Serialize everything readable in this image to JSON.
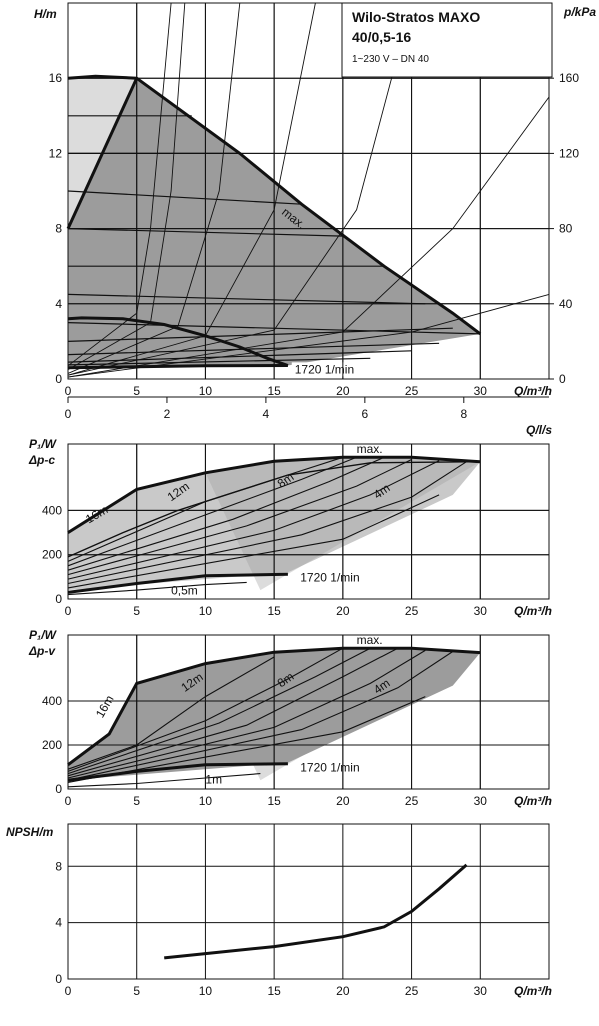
{
  "title": {
    "line1": "Wilo-Stratos MAXO",
    "line2": "40/0,5-16",
    "line3": "1~230 V – DN 40"
  },
  "colors": {
    "line": "#111111",
    "shade_dark": "#9c9c9c",
    "shade_light": "#dcdcdc",
    "grid": "#111111"
  },
  "chart_data": [
    {
      "id": "hq",
      "type": "line",
      "ylabel": "H/m",
      "y2label": "p/kPa",
      "xlabel": "Q/m³/h",
      "x2label": "Q/l/s",
      "xlim": [
        0,
        35
      ],
      "ylim": [
        0,
        20
      ],
      "xticks": [
        0,
        5,
        10,
        15,
        20,
        25,
        30
      ],
      "yticks": [
        0,
        4,
        8,
        12,
        16
      ],
      "y2ticks": [
        0,
        40,
        80,
        120,
        160
      ],
      "x2ticks": [
        0,
        2,
        4,
        6,
        8
      ],
      "max_label": "max.",
      "min_label": "1720 1/min",
      "series": [
        {
          "id": "max",
          "x": [
            0,
            2,
            5,
            12.5,
            17,
            23,
            28,
            30
          ],
          "y": [
            16,
            16.1,
            16,
            12,
            9.3,
            6,
            3.5,
            2.4
          ]
        },
        {
          "id": "dp-c-left",
          "x": [
            0,
            5
          ],
          "y": [
            8,
            16
          ]
        },
        {
          "id": "min",
          "x": [
            0,
            5,
            10,
            16
          ],
          "y": [
            0.6,
            0.65,
            0.7,
            0.72
          ]
        },
        {
          "id": "low-ceiling",
          "x": [
            0,
            1,
            4,
            7,
            10,
            12.5,
            14.5,
            16
          ],
          "y": [
            3.2,
            3.25,
            3.2,
            2.9,
            2.3,
            1.7,
            1.1,
            0.72
          ]
        }
      ],
      "speed_lines": [
        {
          "x": [
            0,
            9
          ],
          "y": [
            14,
            14
          ]
        },
        {
          "x": [
            0,
            12.5
          ],
          "y": [
            12,
            12
          ]
        },
        {
          "x": [
            0,
            17
          ],
          "y": [
            10,
            9.3
          ]
        },
        {
          "x": [
            0,
            20
          ],
          "y": [
            8,
            7.6
          ]
        },
        {
          "x": [
            0,
            23
          ],
          "y": [
            6,
            6
          ]
        },
        {
          "x": [
            0,
            26
          ],
          "y": [
            4.5,
            4
          ]
        },
        {
          "x": [
            0,
            30
          ],
          "y": [
            3,
            2.4
          ]
        },
        {
          "x": [
            0,
            28
          ],
          "y": [
            2,
            2.7
          ]
        },
        {
          "x": [
            0,
            27
          ],
          "y": [
            1.3,
            1.9
          ]
        },
        {
          "x": [
            0,
            25
          ],
          "y": [
            0.9,
            1.5
          ]
        },
        {
          "x": [
            0,
            22
          ],
          "y": [
            0.75,
            1.1
          ]
        }
      ],
      "fan_lines": [
        {
          "x": [
            0,
            5,
            6,
            7.5
          ],
          "y": [
            0.7,
            3.5,
            8,
            20
          ]
        },
        {
          "x": [
            0,
            6,
            7.5,
            8.5
          ],
          "y": [
            0.5,
            3,
            10,
            20
          ]
        },
        {
          "x": [
            0,
            8,
            11,
            12.5
          ],
          "y": [
            0.3,
            2.8,
            10,
            20
          ]
        },
        {
          "x": [
            0,
            10,
            15,
            18
          ],
          "y": [
            0.2,
            2.3,
            9,
            20
          ]
        },
        {
          "x": [
            0,
            15,
            21,
            25
          ],
          "y": [
            0.2,
            2.6,
            9,
            20
          ]
        },
        {
          "x": [
            0,
            20,
            28,
            35
          ],
          "y": [
            0.1,
            2.5,
            8,
            15
          ]
        },
        {
          "x": [
            0,
            25,
            35
          ],
          "y": [
            0.1,
            2.5,
            4.5
          ]
        }
      ]
    },
    {
      "id": "p1-dpc",
      "type": "line",
      "ylabel": "P₁/W",
      "ylabel2": "Δp-c",
      "xlabel": "Q/m³/h",
      "xlim": [
        0,
        35
      ],
      "ylim": [
        0,
        700
      ],
      "xticks": [
        0,
        5,
        10,
        15,
        20,
        25,
        30
      ],
      "yticks": [
        0,
        200,
        400
      ],
      "max_label": "max.",
      "min_label": "1720 1/min",
      "curve_labels": [
        "16m",
        "12m",
        "8m",
        "4m",
        "0,5m"
      ],
      "series": [
        {
          "id": "max",
          "x": [
            0,
            5,
            10,
            15,
            20,
            25,
            30
          ],
          "y": [
            300,
            495,
            570,
            622,
            640,
            640,
            620
          ]
        },
        {
          "id": "min",
          "x": [
            0,
            5,
            10,
            16
          ],
          "y": [
            30,
            70,
            105,
            112
          ]
        },
        {
          "id": "curve-16m",
          "x": [
            0,
            4,
            8,
            12,
            16,
            22,
            30
          ],
          "y": [
            190,
            300,
            400,
            480,
            560,
            615,
            620
          ]
        }
      ],
      "family": [
        {
          "x": [
            0,
            10,
            16,
            20
          ],
          "y": [
            170,
            440,
            560,
            640
          ]
        },
        {
          "x": [
            0,
            10,
            17,
            21
          ],
          "y": [
            150,
            380,
            540,
            640
          ]
        },
        {
          "x": [
            0,
            12,
            19,
            23
          ],
          "y": [
            130,
            360,
            530,
            640
          ]
        },
        {
          "x": [
            0,
            13,
            21,
            25
          ],
          "y": [
            110,
            330,
            510,
            630
          ]
        },
        {
          "x": [
            0,
            15,
            22,
            27
          ],
          "y": [
            90,
            310,
            470,
            625
          ]
        },
        {
          "x": [
            0,
            17,
            25,
            29
          ],
          "y": [
            70,
            290,
            460,
            620
          ]
        },
        {
          "x": [
            0,
            20,
            27
          ],
          "y": [
            50,
            270,
            470
          ]
        },
        {
          "x": [
            0,
            5,
            10,
            13
          ],
          "y": [
            20,
            40,
            65,
            75
          ]
        }
      ]
    },
    {
      "id": "p1-dpv",
      "type": "line",
      "ylabel": "P₁/W",
      "ylabel2": "Δp-v",
      "xlabel": "Q/m³/h",
      "xlim": [
        0,
        35
      ],
      "ylim": [
        0,
        700
      ],
      "xticks": [
        0,
        5,
        10,
        15,
        20,
        25,
        30
      ],
      "yticks": [
        0,
        200,
        400
      ],
      "max_label": "max.",
      "min_label": "1720 1/min",
      "curve_labels": [
        "16m",
        "12m",
        "8m",
        "4m",
        "1m"
      ],
      "series": [
        {
          "id": "max",
          "x": [
            0,
            3,
            5,
            10,
            15,
            20,
            25,
            30
          ],
          "y": [
            110,
            250,
            480,
            570,
            622,
            640,
            640,
            620
          ]
        },
        {
          "id": "min",
          "x": [
            0,
            5,
            10,
            16
          ],
          "y": [
            40,
            80,
            110,
            115
          ]
        }
      ],
      "family": [
        {
          "x": [
            0,
            5,
            10,
            15
          ],
          "y": [
            90,
            200,
            420,
            600
          ]
        },
        {
          "x": [
            0,
            10,
            16,
            20
          ],
          "y": [
            80,
            310,
            500,
            640
          ]
        },
        {
          "x": [
            0,
            11,
            18,
            22
          ],
          "y": [
            70,
            300,
            510,
            640
          ]
        },
        {
          "x": [
            0,
            13,
            20,
            24
          ],
          "y": [
            60,
            290,
            510,
            640
          ]
        },
        {
          "x": [
            0,
            15,
            22,
            26
          ],
          "y": [
            50,
            280,
            480,
            630
          ]
        },
        {
          "x": [
            0,
            17,
            24,
            28
          ],
          "y": [
            40,
            270,
            460,
            625
          ]
        },
        {
          "x": [
            0,
            20,
            26
          ],
          "y": [
            30,
            260,
            420
          ]
        },
        {
          "x": [
            0,
            5,
            10,
            14
          ],
          "y": [
            10,
            25,
            50,
            70
          ]
        }
      ]
    },
    {
      "id": "npsh",
      "type": "line",
      "ylabel": "NPSH/m",
      "xlabel": "Q/m³/h",
      "xlim": [
        0,
        35
      ],
      "ylim": [
        0,
        11
      ],
      "xticks": [
        0,
        5,
        10,
        15,
        20,
        25,
        30
      ],
      "yticks": [
        0,
        4,
        8
      ],
      "series": [
        {
          "id": "npsh",
          "x": [
            7,
            10,
            15,
            20,
            23,
            25,
            27,
            29
          ],
          "y": [
            1.5,
            1.8,
            2.3,
            3.0,
            3.7,
            4.8,
            6.4,
            8.1
          ]
        }
      ]
    }
  ]
}
